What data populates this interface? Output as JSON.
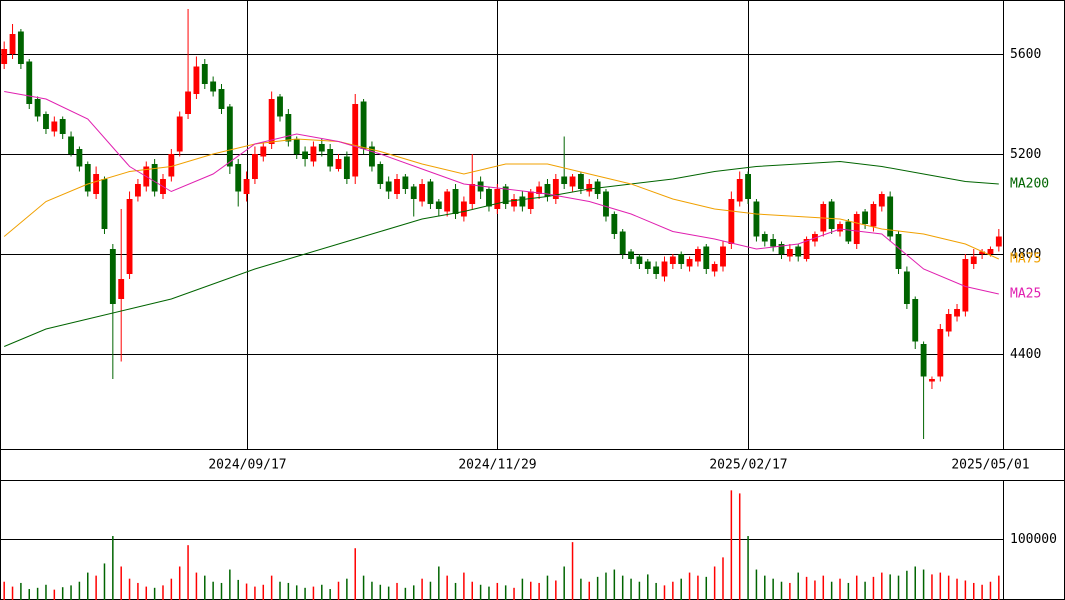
{
  "chart_data": {
    "type": "candlestick",
    "xlim": [
      -0.5,
      119.5
    ],
    "xticks": [
      {
        "value": 29,
        "label": "2024/09/17"
      },
      {
        "value": 59,
        "label": "2024/11/29"
      },
      {
        "value": 89,
        "label": "2025/02/17"
      },
      {
        "value": 118,
        "label": "2025/05/01"
      }
    ],
    "ylim": [
      4020,
      5816
    ],
    "yticks": [
      4400,
      4800,
      5200,
      5600
    ],
    "up_color": "#ff0000",
    "down_color": "#006400",
    "grid": true,
    "open": [
      5560,
      5600,
      5690,
      5570,
      5420,
      5360,
      5290,
      5340,
      5270,
      5220,
      5160,
      5040,
      5100,
      4820,
      4620,
      4720,
      5030,
      5070,
      5160,
      5040,
      5110,
      5210,
      5360,
      5440,
      5560,
      5490,
      5460,
      5390,
      5160,
      5040,
      5100,
      5190,
      5240,
      5430,
      5360,
      5260,
      5210,
      5170,
      5240,
      5220,
      5140,
      5190,
      5110,
      5410,
      5230,
      5160,
      5090,
      5040,
      5110,
      5070,
      5010,
      5090,
      5010,
      4970,
      5060,
      4950,
      5000,
      5090,
      5060,
      4980,
      5070,
      4990,
      5030,
      4980,
      5040,
      5080,
      5020,
      5110,
      5070,
      5120,
      5050,
      5090,
      5050,
      4960,
      4890,
      4810,
      4790,
      4770,
      4750,
      4710,
      4760,
      4800,
      4750,
      4770,
      4830,
      4730,
      4750,
      4840,
      5010,
      5120,
      5010,
      4880,
      4860,
      4840,
      4790,
      4830,
      4780,
      4850,
      4890,
      5010,
      4890,
      4930,
      4840,
      4970,
      4910,
      4990,
      5030,
      4880,
      4730,
      4620,
      4440,
      4290,
      4310,
      4490,
      4550,
      4570,
      4760,
      4800,
      4800,
      4830
    ],
    "high": [
      5650,
      5720,
      5700,
      5580,
      5430,
      5370,
      5350,
      5350,
      5290,
      5230,
      5170,
      5150,
      5110,
      4840,
      4980,
      5050,
      5100,
      5170,
      5180,
      5120,
      5220,
      5370,
      5780,
      5590,
      5580,
      5510,
      5480,
      5400,
      5180,
      5130,
      5230,
      5250,
      5450,
      5440,
      5380,
      5270,
      5230,
      5250,
      5260,
      5240,
      5200,
      5210,
      5440,
      5420,
      5250,
      5170,
      5110,
      5120,
      5120,
      5080,
      5100,
      5100,
      5020,
      5060,
      5080,
      5030,
      5200,
      5110,
      5070,
      5080,
      5080,
      5040,
      5050,
      5060,
      5090,
      5100,
      5120,
      5270,
      5120,
      5130,
      5100,
      5100,
      5060,
      4970,
      4900,
      4820,
      4800,
      4780,
      4770,
      4790,
      4800,
      4810,
      4790,
      4830,
      4840,
      4770,
      4850,
      5050,
      5130,
      5130,
      5020,
      4890,
      4880,
      4850,
      4840,
      4840,
      4870,
      4890,
      5010,
      5020,
      4930,
      4940,
      4970,
      4980,
      5010,
      5050,
      5050,
      4890,
      4750,
      4630,
      4450,
      4310,
      4520,
      4580,
      4600,
      4800,
      4820,
      4820,
      4830,
      4900
    ],
    "low": [
      5540,
      5580,
      5540,
      5380,
      5330,
      5280,
      5270,
      5260,
      5190,
      5130,
      5030,
      5020,
      4880,
      4300,
      4370,
      4700,
      5010,
      5050,
      5030,
      5020,
      5090,
      5190,
      5340,
      5420,
      5460,
      5430,
      5360,
      5120,
      4990,
      5010,
      5080,
      5170,
      5220,
      5330,
      5230,
      5180,
      5150,
      5150,
      5190,
      5130,
      5130,
      5080,
      5080,
      5200,
      5130,
      5060,
      5020,
      5020,
      5040,
      4950,
      4990,
      4980,
      4950,
      4950,
      4940,
      4930,
      4980,
      5020,
      4970,
      4960,
      4980,
      4970,
      4970,
      4960,
      5020,
      5010,
      5000,
      5060,
      5050,
      5040,
      5030,
      5020,
      4930,
      4860,
      4780,
      4760,
      4740,
      4720,
      4700,
      4690,
      4740,
      4740,
      4730,
      4750,
      4720,
      4710,
      4730,
      4820,
      4990,
      5000,
      4850,
      4830,
      4810,
      4780,
      4770,
      4770,
      4770,
      4830,
      4870,
      4880,
      4870,
      4840,
      4820,
      4900,
      4890,
      4970,
      4850,
      4720,
      4580,
      4420,
      4060,
      4260,
      4290,
      4470,
      4530,
      4550,
      4740,
      4780,
      4790,
      4810
    ],
    "close": [
      5620,
      5680,
      5560,
      5400,
      5350,
      5300,
      5330,
      5280,
      5200,
      5150,
      5050,
      5120,
      4900,
      4600,
      4700,
      5020,
      5080,
      5150,
      5050,
      5100,
      5200,
      5350,
      5450,
      5550,
      5480,
      5450,
      5380,
      5150,
      5050,
      5100,
      5200,
      5230,
      5420,
      5350,
      5250,
      5200,
      5180,
      5230,
      5210,
      5150,
      5180,
      5100,
      5400,
      5220,
      5150,
      5080,
      5050,
      5100,
      5060,
      5020,
      5080,
      5000,
      4980,
      5050,
      4960,
      5010,
      5080,
      5050,
      4990,
      5060,
      5000,
      5020,
      4990,
      5050,
      5070,
      5030,
      5100,
      5080,
      5110,
      5060,
      5080,
      5040,
      4950,
      4880,
      4800,
      4780,
      4760,
      4740,
      4720,
      4770,
      4790,
      4760,
      4780,
      4820,
      4740,
      4760,
      4830,
      5020,
      5100,
      5020,
      4870,
      4850,
      4830,
      4800,
      4820,
      4790,
      4860,
      4880,
      5000,
      4900,
      4920,
      4850,
      4960,
      4920,
      5000,
      5040,
      4870,
      4740,
      4600,
      4450,
      4310,
      4300,
      4500,
      4560,
      4580,
      4780,
      4790,
      4810,
      4820,
      4870
    ],
    "series": [
      {
        "name": "MA200",
        "color": "#006400",
        "x": [
          0,
          5,
          10,
          15,
          20,
          25,
          30,
          35,
          40,
          45,
          50,
          55,
          60,
          65,
          70,
          75,
          80,
          85,
          90,
          95,
          100,
          105,
          110,
          115,
          119
        ],
        "values": [
          4430,
          4500,
          4540,
          4580,
          4620,
          4680,
          4740,
          4790,
          4840,
          4890,
          4940,
          4970,
          5010,
          5030,
          5060,
          5080,
          5100,
          5130,
          5150,
          5160,
          5170,
          5150,
          5120,
          5090,
          5080
        ]
      },
      {
        "name": "MA75",
        "color": "#f0a000",
        "x": [
          0,
          5,
          10,
          15,
          20,
          25,
          30,
          35,
          40,
          45,
          50,
          55,
          60,
          65,
          70,
          75,
          80,
          85,
          90,
          95,
          100,
          105,
          110,
          115,
          119
        ],
        "values": [
          4870,
          5010,
          5080,
          5130,
          5150,
          5200,
          5240,
          5260,
          5250,
          5210,
          5160,
          5120,
          5160,
          5160,
          5120,
          5080,
          5020,
          4980,
          4960,
          4950,
          4940,
          4900,
          4880,
          4840,
          4780
        ]
      },
      {
        "name": "MA25",
        "color": "#e020b0",
        "x": [
          0,
          5,
          10,
          15,
          20,
          25,
          30,
          35,
          40,
          45,
          50,
          55,
          60,
          65,
          70,
          75,
          80,
          85,
          90,
          95,
          100,
          105,
          110,
          115,
          119
        ],
        "values": [
          5450,
          5420,
          5340,
          5150,
          5050,
          5120,
          5240,
          5280,
          5250,
          5200,
          5140,
          5080,
          5060,
          5040,
          5010,
          4960,
          4890,
          4860,
          4820,
          4840,
          4900,
          4880,
          4740,
          4670,
          4640
        ]
      }
    ],
    "volume": [
      30000,
      22000,
      28000,
      18000,
      20000,
      25000,
      17000,
      21000,
      24000,
      30000,
      45000,
      40000,
      60000,
      105000,
      55000,
      35000,
      28000,
      22000,
      20000,
      24000,
      35000,
      55000,
      90000,
      45000,
      40000,
      30000,
      28000,
      50000,
      33000,
      27000,
      22000,
      25000,
      40000,
      30000,
      28000,
      24000,
      20000,
      22000,
      25000,
      18000,
      30000,
      35000,
      85000,
      40000,
      30000,
      25000,
      22000,
      28000,
      20000,
      24000,
      35000,
      30000,
      55000,
      40000,
      28000,
      45000,
      30000,
      25000,
      22000,
      28000,
      24000,
      20000,
      35000,
      30000,
      28000,
      40000,
      32000,
      55000,
      95000,
      35000,
      30000,
      38000,
      45000,
      50000,
      40000,
      35000,
      30000,
      42000,
      28000,
      24000,
      30000,
      35000,
      45000,
      40000,
      38000,
      55000,
      70000,
      180000,
      175000,
      105000,
      50000,
      40000,
      35000,
      30000,
      28000,
      45000,
      38000,
      32000,
      40000,
      30000,
      35000,
      28000,
      40000,
      30000,
      38000,
      45000,
      42000,
      40000,
      48000,
      55000,
      50000,
      42000,
      45000,
      40000,
      35000,
      32000,
      28000,
      25000,
      30000,
      40000
    ],
    "volume_ylim": [
      0,
      197000
    ],
    "volume_yticks": [
      100000
    ]
  }
}
